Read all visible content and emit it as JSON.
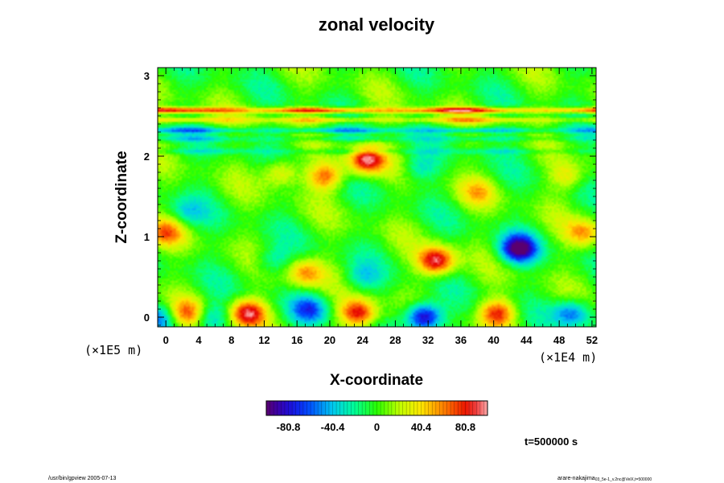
{
  "chart_data": {
    "type": "heatmap",
    "title": "zonal velocity",
    "xlabel": "X-coordinate",
    "ylabel": "Z-coordinate",
    "x_unit": "(×1E4 m)",
    "y_unit": "(×1E5 m)",
    "xlim": [
      -1,
      52.5
    ],
    "ylim": [
      -0.12,
      3.1
    ],
    "x_ticks": [
      "0",
      "4",
      "8",
      "12",
      "16",
      "20",
      "24",
      "28",
      "32",
      "36",
      "40",
      "44",
      "48",
      "52"
    ],
    "y_ticks": [
      "0",
      "1",
      "2",
      "3"
    ],
    "colorbar": {
      "range": [
        -101,
        101
      ],
      "tick_values": [
        -80.8,
        -40.4,
        0,
        40.4,
        80.8
      ],
      "tick_labels": [
        "-80.8",
        "-40.4",
        "0",
        "40.4",
        "80.8"
      ]
    },
    "time_label": "t=500000 s",
    "features": [
      {
        "x": 10,
        "z": 0.05,
        "value": 90
      },
      {
        "x": 2.5,
        "z": 0.05,
        "value": 60
      },
      {
        "x": -0.5,
        "z": 0.0,
        "value": -50
      },
      {
        "x": 5.5,
        "z": 0.0,
        "value": -40
      },
      {
        "x": 17.5,
        "z": 0.1,
        "value": -55
      },
      {
        "x": 23.5,
        "z": 0.05,
        "value": 85
      },
      {
        "x": 31.5,
        "z": 0.0,
        "value": -100
      },
      {
        "x": 40.5,
        "z": 0.05,
        "value": 75
      },
      {
        "x": 49.5,
        "z": 0.05,
        "value": -60
      },
      {
        "x": 17,
        "z": 0.55,
        "value": 55
      },
      {
        "x": 13,
        "z": 0.7,
        "value": -30
      },
      {
        "x": 24,
        "z": 0.5,
        "value": -30
      },
      {
        "x": 33,
        "z": 0.7,
        "value": 95
      },
      {
        "x": 43,
        "z": 0.85,
        "value": -100
      },
      {
        "x": 51,
        "z": 1.05,
        "value": 50
      },
      {
        "x": 0,
        "z": 1.05,
        "value": 55
      },
      {
        "x": 19.5,
        "z": 1.75,
        "value": 65
      },
      {
        "x": 24.5,
        "z": 1.95,
        "value": 95
      },
      {
        "x": 14,
        "z": 1.8,
        "value": 45
      },
      {
        "x": 31,
        "z": 1.85,
        "value": -30
      },
      {
        "x": 38,
        "z": 1.55,
        "value": 35
      },
      {
        "x": 49,
        "z": 1.75,
        "value": 35
      },
      {
        "x": 2.5,
        "z": 1.3,
        "value": -30
      }
    ],
    "bands": [
      {
        "z": 2.57,
        "value": 85
      },
      {
        "z": 2.45,
        "value": 45
      },
      {
        "z": 2.32,
        "value": -45
      },
      {
        "z": 2.22,
        "value": -25
      },
      {
        "z": 2.06,
        "value": -20
      }
    ]
  },
  "footer": {
    "left": "/usr/bin/gpview 2005-07-13",
    "right": "arare-nakajima",
    "right_small": "03_5e-1_v.2nc@VelX,t=500000"
  }
}
